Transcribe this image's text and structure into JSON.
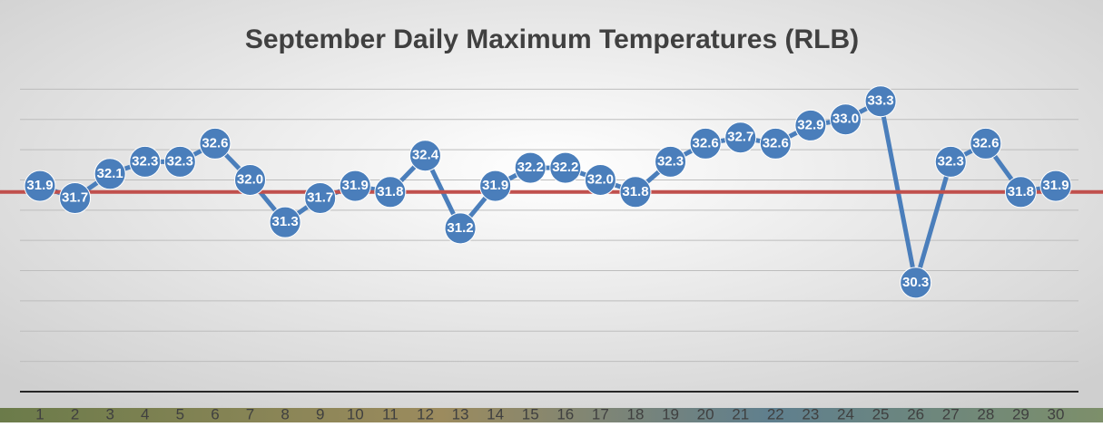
{
  "chart_data": {
    "type": "line",
    "title": "September Daily Maximum Temperatures (RLB)",
    "categories": [
      "1",
      "2",
      "3",
      "4",
      "5",
      "6",
      "7",
      "8",
      "9",
      "10",
      "11",
      "12",
      "13",
      "14",
      "15",
      "16",
      "17",
      "18",
      "19",
      "20",
      "21",
      "22",
      "23",
      "24",
      "25",
      "26",
      "27",
      "28",
      "29",
      "30"
    ],
    "values": [
      31.9,
      31.7,
      32.1,
      32.3,
      32.3,
      32.6,
      32.0,
      31.3,
      31.7,
      31.9,
      31.8,
      32.4,
      31.2,
      31.9,
      32.2,
      32.2,
      32.0,
      31.8,
      32.3,
      32.6,
      32.7,
      32.6,
      32.9,
      33.0,
      33.3,
      30.3,
      32.3,
      32.6,
      31.8,
      31.9
    ],
    "value_labels": [
      "31.9",
      "31.7",
      "32.1",
      "32.3",
      "32.3",
      "32.6",
      "32.0",
      "31.3",
      "31.7",
      "31.9",
      "31.8",
      "32.4",
      "31.2",
      "31.9",
      "32.2",
      "32.2",
      "32.0",
      "31.8",
      "32.3",
      "32.6",
      "32.7",
      "32.6",
      "32.9",
      "33.0",
      "33.3",
      "30.3",
      "32.3",
      "32.6",
      "31.8",
      "31.9"
    ],
    "color": "#4a7ebb",
    "hline": {
      "value": 31.8,
      "color": "#c0504d"
    },
    "ylim": [
      28.5,
      34
    ],
    "yticks": [
      29,
      29.5,
      30,
      30.5,
      31,
      31.5,
      32,
      32.5,
      33,
      33.5
    ],
    "grid": true
  }
}
